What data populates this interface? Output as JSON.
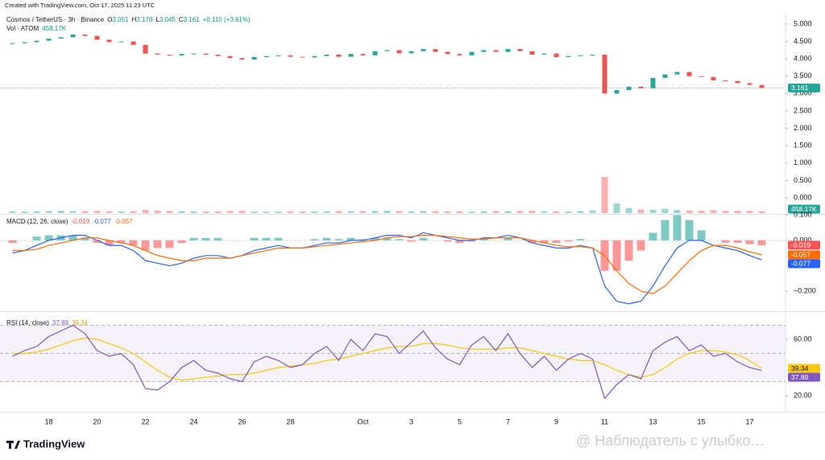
{
  "header": {
    "created": "Created with TradingView.com, Oct 17, 2025 11:23 UTC",
    "symbol": "Cosmos / TetherUS · 3h · Binance",
    "ohlc": [
      {
        "label": "O",
        "value": "3.051"
      },
      {
        "label": "H",
        "value": "3.178"
      },
      {
        "label": "L",
        "value": "3.045"
      },
      {
        "label": "C",
        "value": "3.161"
      }
    ],
    "change": "+0.110 (+3.61%)"
  },
  "footer": {
    "logo": "TradingView",
    "watermark": "@ Наблюдатель с улыбко…"
  },
  "chart_data": [
    {
      "type": "candlestick",
      "categories": [
        null,
        null,
        null,
        "18",
        null,
        null,
        null,
        "20",
        null,
        null,
        null,
        "22",
        null,
        null,
        null,
        "24",
        null,
        null,
        null,
        "26",
        null,
        null,
        null,
        "28",
        null,
        null,
        null,
        null,
        null,
        "Oct",
        null,
        null,
        null,
        "3",
        null,
        null,
        null,
        "5",
        null,
        null,
        null,
        "7",
        null,
        null,
        null,
        "9",
        null,
        null,
        null,
        "11",
        null,
        null,
        null,
        "13",
        null,
        null,
        null,
        "15",
        null,
        null,
        null,
        "17",
        null
      ],
      "series": [
        {
          "name": "Cosmos / TetherUS",
          "color_up": "#26a69a",
          "color_down": "#ef5350",
          "values": [
            4.45,
            4.48,
            4.52,
            4.58,
            4.62,
            4.7,
            4.66,
            4.55,
            4.48,
            4.5,
            4.4,
            4.15,
            4.12,
            4.1,
            4.14,
            4.15,
            4.12,
            4.08,
            4.02,
            3.98,
            4.05,
            4.08,
            4.1,
            4.06,
            4.04,
            4.08,
            4.12,
            4.06,
            4.14,
            4.1,
            4.22,
            4.25,
            4.16,
            4.22,
            4.28,
            4.2,
            4.14,
            4.1,
            4.2,
            4.25,
            4.2,
            4.28,
            4.22,
            4.12,
            4.15,
            4.05,
            4.08,
            4.1,
            4.12,
            3.0,
            3.1,
            3.2,
            3.15,
            3.45,
            3.55,
            3.62,
            3.5,
            3.48,
            3.38,
            3.36,
            3.3,
            3.25,
            3.161
          ]
        }
      ],
      "volume": {
        "name": "Vol · ATOM",
        "values": [
          420,
          380,
          450,
          520,
          600,
          480,
          510,
          560,
          430,
          390,
          470,
          820,
          650,
          540,
          480,
          450,
          400,
          420,
          520,
          610,
          380,
          360,
          340,
          420,
          380,
          400,
          450,
          520,
          480,
          500,
          560,
          620,
          480,
          450,
          540,
          500,
          430,
          410,
          380,
          460,
          520,
          480,
          550,
          600,
          450,
          420,
          380,
          520,
          680,
          9000,
          2400,
          1300,
          900,
          850,
          1100,
          780,
          650,
          600,
          720,
          540,
          600,
          580,
          458.17
        ],
        "value_labels": [
          null,
          null,
          null,
          null,
          null,
          null,
          null,
          null,
          null,
          null,
          null,
          null,
          null,
          null,
          null,
          null,
          null,
          null,
          null,
          null,
          null,
          null,
          null,
          null,
          null,
          null,
          null,
          null,
          null,
          null,
          null,
          null,
          null,
          null,
          null,
          null,
          null,
          null,
          null,
          null,
          null,
          null,
          null,
          null,
          null,
          null,
          null,
          null,
          null,
          null,
          null,
          null,
          null,
          null,
          null,
          null,
          null,
          null,
          null,
          null,
          null,
          null,
          "458.17K"
        ]
      },
      "ylim": [
        -0.44,
        5.23
      ],
      "yticks": [
        {
          "value": 5,
          "label": "5.000"
        },
        {
          "value": 4.5,
          "label": "4.500"
        },
        {
          "value": 4,
          "label": "4.000"
        },
        {
          "value": 3.5,
          "label": "3.500"
        },
        {
          "value": 3,
          "label": "3.000"
        },
        {
          "value": 2.5,
          "label": "2.500"
        },
        {
          "value": 2,
          "label": "2.000"
        },
        {
          "value": 1.5,
          "label": "1.500"
        },
        {
          "value": 1,
          "label": "1.000"
        },
        {
          "value": 0.5,
          "label": "0.500"
        },
        {
          "value": 0,
          "label": "0.000"
        }
      ],
      "grid": false
    },
    {
      "type": "macd",
      "title": "MACD (12, 26, close)",
      "series": [
        {
          "name": "Histogram",
          "color_up": "#26a69a",
          "color_down": "#ff5252",
          "values": [
            -0.01,
            0.0,
            0.015,
            0.02,
            0.02,
            0.02,
            0.01,
            -0.01,
            -0.02,
            -0.01,
            -0.02,
            -0.04,
            -0.03,
            -0.03,
            -0.01,
            0.01,
            0.01,
            0.01,
            0.0,
            0.0,
            0.01,
            0.01,
            0.01,
            0.0,
            0.0,
            0.005,
            0.01,
            0.005,
            0.01,
            0.005,
            0.01,
            0.01,
            0.005,
            -0.005,
            0.01,
            0.0,
            -0.005,
            -0.01,
            -0.005,
            0.005,
            0.0,
            0.01,
            0.0,
            -0.01,
            -0.01,
            -0.01,
            -0.005,
            0.005,
            0.0,
            -0.12,
            -0.12,
            -0.08,
            -0.04,
            0.03,
            0.08,
            0.1,
            0.08,
            0.04,
            0.0,
            -0.01,
            -0.01,
            -0.015,
            -0.019
          ]
        },
        {
          "name": "MACD",
          "color": "#2962ff",
          "values": [
            -0.05,
            -0.04,
            -0.02,
            0.0,
            0.01,
            0.02,
            0.02,
            0.0,
            -0.02,
            -0.02,
            -0.04,
            -0.08,
            -0.09,
            -0.1,
            -0.09,
            -0.07,
            -0.06,
            -0.06,
            -0.07,
            -0.06,
            -0.04,
            -0.03,
            -0.02,
            -0.03,
            -0.03,
            -0.02,
            -0.01,
            -0.01,
            0.0,
            0.0,
            0.01,
            0.02,
            0.02,
            0.01,
            0.03,
            0.02,
            0.01,
            0.0,
            0.0,
            0.01,
            0.01,
            0.02,
            0.01,
            -0.01,
            -0.02,
            -0.03,
            -0.03,
            -0.02,
            -0.03,
            -0.18,
            -0.24,
            -0.25,
            -0.24,
            -0.18,
            -0.1,
            -0.03,
            0.0,
            0.0,
            -0.02,
            -0.03,
            -0.04,
            -0.06,
            -0.077
          ]
        },
        {
          "name": "Signal",
          "color": "#ff6d00",
          "values": [
            -0.04,
            -0.04,
            -0.035,
            -0.02,
            -0.01,
            0.0,
            0.01,
            0.01,
            0.0,
            -0.01,
            -0.02,
            -0.04,
            -0.06,
            -0.07,
            -0.08,
            -0.08,
            -0.07,
            -0.07,
            -0.07,
            -0.06,
            -0.05,
            -0.04,
            -0.03,
            -0.03,
            -0.03,
            -0.025,
            -0.02,
            -0.015,
            -0.01,
            -0.005,
            0.0,
            0.01,
            0.015,
            0.015,
            0.02,
            0.02,
            0.015,
            0.01,
            0.005,
            0.005,
            0.01,
            0.01,
            0.01,
            0.0,
            -0.01,
            -0.02,
            -0.025,
            -0.025,
            -0.03,
            -0.06,
            -0.12,
            -0.17,
            -0.2,
            -0.21,
            -0.18,
            -0.13,
            -0.08,
            -0.04,
            -0.02,
            -0.02,
            -0.03,
            -0.045,
            -0.057
          ]
        }
      ],
      "ylim": [
        -0.273,
        0.098
      ],
      "yticks": [
        {
          "value": 0.1,
          "label": "0.100"
        },
        {
          "value": 0,
          "label": "0.000"
        },
        {
          "value": -0.2,
          "label": "−0.200"
        }
      ]
    },
    {
      "type": "rsi",
      "title": "RSI (14, close)",
      "series": [
        {
          "name": "RSI",
          "color": "#7e57c2",
          "values": [
            48,
            52,
            55,
            62,
            66,
            70,
            64,
            52,
            48,
            50,
            42,
            25,
            24,
            30,
            40,
            45,
            38,
            36,
            32,
            30,
            44,
            48,
            45,
            40,
            42,
            50,
            55,
            45,
            60,
            52,
            64,
            62,
            50,
            58,
            66,
            54,
            46,
            42,
            56,
            62,
            52,
            64,
            50,
            40,
            48,
            38,
            46,
            50,
            46,
            18,
            28,
            35,
            32,
            52,
            58,
            62,
            52,
            56,
            48,
            50,
            44,
            40,
            37.89
          ]
        },
        {
          "name": "RSI MA",
          "color": "#f9c80e",
          "values": [
            50,
            50,
            51,
            53,
            56,
            59,
            61,
            60,
            57,
            54,
            50,
            44,
            38,
            33,
            31,
            32,
            33,
            34,
            35,
            35,
            36,
            38,
            40,
            41,
            42,
            43,
            45,
            46,
            48,
            50,
            52,
            54,
            55,
            55,
            57,
            57,
            56,
            54,
            53,
            53,
            53,
            54,
            54,
            52,
            50,
            48,
            46,
            45,
            45,
            42,
            38,
            35,
            33,
            35,
            40,
            46,
            50,
            52,
            52,
            51,
            49,
            45,
            39.34
          ]
        }
      ],
      "bands": [
        30,
        50,
        70
      ],
      "ylim": [
        9.7,
        78.3
      ],
      "yticks": [
        {
          "value": 60,
          "label": "60.00"
        },
        {
          "value": 20,
          "label": "20.00"
        }
      ]
    }
  ]
}
